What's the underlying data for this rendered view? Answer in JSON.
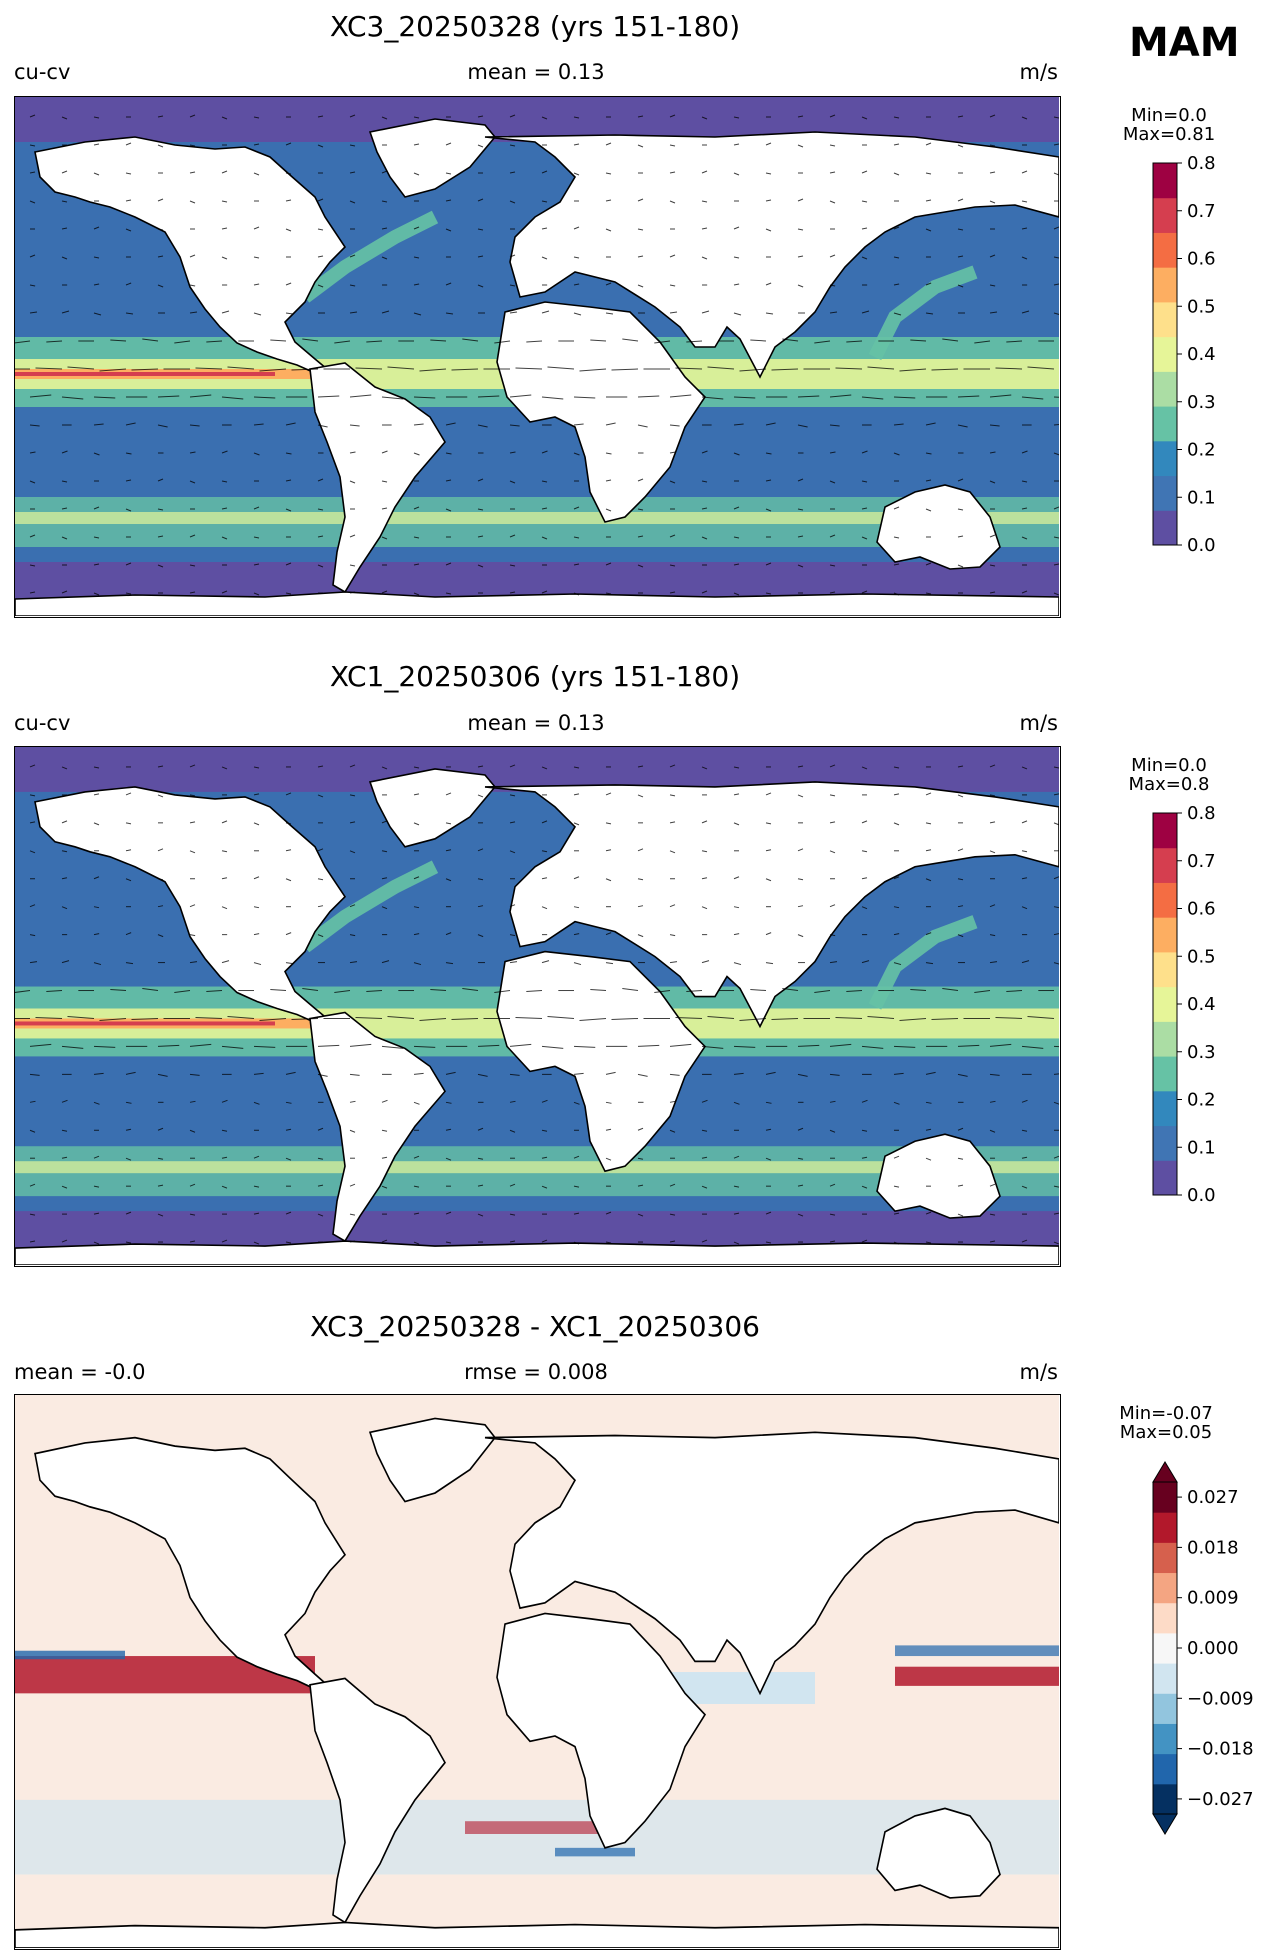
{
  "season": "MAM",
  "panels": [
    {
      "title": "XC3_20250328 (yrs 151-180)",
      "left_label": "cu-cv",
      "center_label": "mean = 0.13",
      "right_label": "m/s",
      "colorbar": {
        "info_line1": "Min=0.0",
        "info_line2": "Max=0.81",
        "ticks": [
          "0.0",
          "0.1",
          "0.2",
          "0.3",
          "0.4",
          "0.5",
          "0.6",
          "0.7",
          "0.8"
        ],
        "colors": [
          "#5e4fa2",
          "#4075b4",
          "#3288bd",
          "#66c2a5",
          "#abdda4",
          "#e6f598",
          "#fee08b",
          "#fdae61",
          "#f46d43",
          "#d53e4f",
          "#9e0142"
        ]
      }
    },
    {
      "title": "XC1_20250306 (yrs 151-180)",
      "left_label": "cu-cv",
      "center_label": "mean = 0.13",
      "right_label": "m/s",
      "colorbar": {
        "info_line1": "Min=0.0",
        "info_line2": "Max=0.8",
        "ticks": [
          "0.0",
          "0.1",
          "0.2",
          "0.3",
          "0.4",
          "0.5",
          "0.6",
          "0.7",
          "0.8"
        ],
        "colors": [
          "#5e4fa2",
          "#4075b4",
          "#3288bd",
          "#66c2a5",
          "#abdda4",
          "#e6f598",
          "#fee08b",
          "#fdae61",
          "#f46d43",
          "#d53e4f",
          "#9e0142"
        ]
      }
    },
    {
      "title": "XC3_20250328 - XC1_20250306",
      "left_label": "mean = -0.0",
      "center_label": "rmse = 0.008",
      "right_label": "m/s",
      "colorbar": {
        "info_line1": "Min=-0.07",
        "info_line2": "Max=0.05",
        "ticks": [
          "0.027",
          "0.018",
          "0.009",
          "0.000",
          "−0.009",
          "−0.018",
          "−0.027"
        ],
        "colors": [
          "#053061",
          "#2166ac",
          "#4393c3",
          "#92c5de",
          "#d1e5f0",
          "#f7f7f7",
          "#fddbc7",
          "#f4a582",
          "#d6604d",
          "#b2182b",
          "#67001f"
        ]
      }
    }
  ],
  "palette": {
    "land": "#ffffff",
    "coast": "#000000",
    "abs_ocean": "#3a6fb0",
    "abs_polar": "#5e4fa2",
    "abs_band_teal": "#66c2a5",
    "abs_band_yellow": "#e6f598",
    "abs_band_orange": "#fdae61",
    "abs_band_red": "#d53e4f",
    "diff_pos": "#b2182b",
    "diff_neg": "#2166ac",
    "diff_light_pos": "#fddbc7",
    "diff_light_neg": "#d1e5f0"
  }
}
